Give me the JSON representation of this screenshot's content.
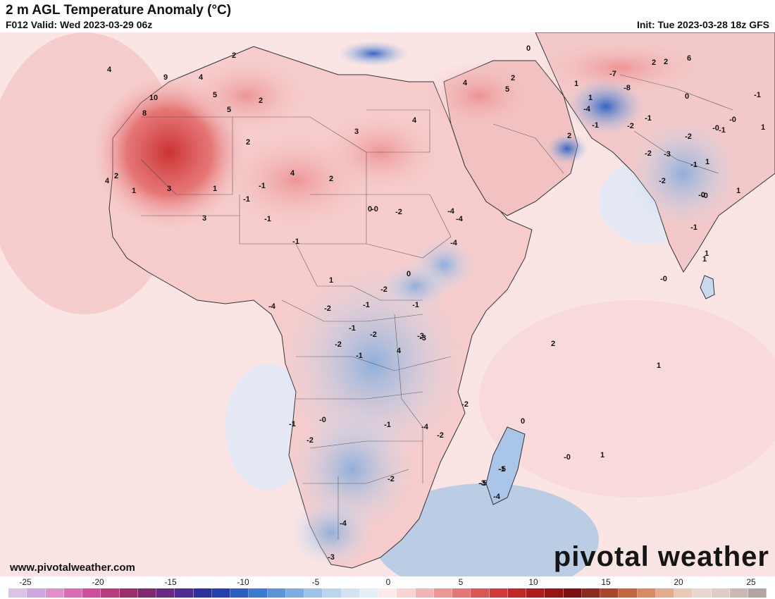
{
  "header": {
    "title": "2 m AGL Temperature Anomaly (°C)",
    "valid": "F012 Valid: Wed 2023-03-29 06z",
    "init": "Init: Tue 2023-03-28 18z GFS"
  },
  "footer": {
    "website": "www.pivotalweather.com",
    "logo": "pivotal weather"
  },
  "colorbar": {
    "tick_labels": [
      "-25",
      "-20",
      "-15",
      "-10",
      "-5",
      "0",
      "5",
      "10",
      "15",
      "20",
      "25"
    ],
    "colors": [
      "#d9c4e6",
      "#cfa9dd",
      "#e08fc9",
      "#db6bb7",
      "#d04c9c",
      "#b93a7f",
      "#9c2f6b",
      "#7f2a6f",
      "#6a2a84",
      "#4f2b95",
      "#2c2f9c",
      "#243fae",
      "#2a5fc2",
      "#3b7cd0",
      "#5b95d8",
      "#7eaedf",
      "#9fc3e6",
      "#bcd5ed",
      "#d3e3f2",
      "#e6eef8",
      "#fbeaea",
      "#f8d3d3",
      "#f2b5b5",
      "#ec9696",
      "#e57676",
      "#dc5656",
      "#d23a3a",
      "#c42525",
      "#b11a1a",
      "#971414",
      "#7d1010",
      "#8c2a1f",
      "#a8472c",
      "#c3663f",
      "#d98a63",
      "#e4ab8e",
      "#ecc8b8",
      "#e9d8d2",
      "#dccdc8",
      "#c9bab6",
      "#b3a5a2"
    ]
  },
  "map_values": [
    {
      "t": "4"
    },
    {
      "t": "9"
    },
    {
      "t": "4"
    },
    {
      "t": "10"
    },
    {
      "t": "8"
    },
    {
      "t": "5"
    },
    {
      "t": "5"
    },
    {
      "t": "2"
    },
    {
      "t": "2"
    },
    {
      "t": "3"
    },
    {
      "t": "4"
    },
    {
      "t": "1"
    },
    {
      "t": "2"
    },
    {
      "t": "4"
    },
    {
      "t": "4"
    },
    {
      "t": "2"
    },
    {
      "t": "3"
    },
    {
      "t": "3"
    },
    {
      "t": "4"
    },
    {
      "t": "2"
    },
    {
      "t": "1"
    },
    {
      "t": "-1"
    },
    {
      "t": "-0"
    },
    {
      "t": "-1"
    },
    {
      "t": "0"
    },
    {
      "t": "-2"
    },
    {
      "t": "-1"
    },
    {
      "t": "-1"
    },
    {
      "t": "-4"
    },
    {
      "t": "1"
    },
    {
      "t": "-2"
    },
    {
      "t": "-1"
    },
    {
      "t": "-1"
    },
    {
      "t": "0"
    },
    {
      "t": "-1"
    },
    {
      "t": "-2"
    },
    {
      "t": "-2"
    },
    {
      "t": "-1"
    },
    {
      "t": "-2"
    },
    {
      "t": "-4"
    },
    {
      "t": "-3"
    },
    {
      "t": "-1"
    },
    {
      "t": "-2"
    },
    {
      "t": "-1"
    },
    {
      "t": "-0"
    },
    {
      "t": "-3"
    },
    {
      "t": "-4"
    },
    {
      "t": "-4"
    },
    {
      "t": "-3"
    },
    {
      "t": "-4"
    },
    {
      "t": "4"
    },
    {
      "t": "-2"
    },
    {
      "t": "-1"
    },
    {
      "t": "-3"
    },
    {
      "t": "-2"
    },
    {
      "t": "-2"
    },
    {
      "t": "-5"
    },
    {
      "t": "-5"
    },
    {
      "t": "-4"
    },
    {
      "t": "0"
    },
    {
      "t": "1"
    },
    {
      "t": "-0"
    },
    {
      "t": "2"
    },
    {
      "t": "1"
    },
    {
      "t": "-7"
    },
    {
      "t": "-8"
    },
    {
      "t": "-4"
    },
    {
      "t": "-2"
    },
    {
      "t": "-3"
    },
    {
      "t": "-1"
    },
    {
      "t": "-2"
    },
    {
      "t": "-0"
    },
    {
      "t": "-1"
    },
    {
      "t": "-1"
    },
    {
      "t": "2"
    },
    {
      "t": "6"
    },
    {
      "t": "0"
    },
    {
      "t": "5"
    },
    {
      "t": "1"
    },
    {
      "t": "2"
    },
    {
      "t": "-1"
    },
    {
      "t": "1"
    },
    {
      "t": "-1"
    },
    {
      "t": "1"
    },
    {
      "t": "-2"
    },
    {
      "t": "2"
    },
    {
      "t": "-0"
    },
    {
      "t": "-0"
    },
    {
      "t": "1"
    },
    {
      "t": "1"
    },
    {
      "t": "0"
    },
    {
      "t": "1"
    },
    {
      "t": "-0"
    },
    {
      "t": "2"
    },
    {
      "t": "-0"
    },
    {
      "t": "-1"
    },
    {
      "t": "1"
    },
    {
      "t": "-2"
    },
    {
      "t": "-4"
    }
  ]
}
